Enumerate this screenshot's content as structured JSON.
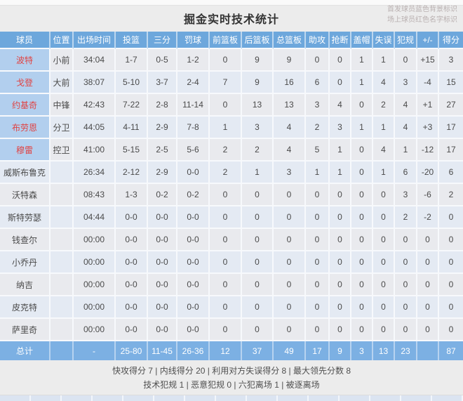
{
  "title": "掘金实时技术统计",
  "legend": {
    "starter_note": "首发球员蓝色背景标识",
    "oncourt_note": "场上球员红色名字标识"
  },
  "table": {
    "columns": [
      "球员",
      "位置",
      "出场时间",
      "投篮",
      "三分",
      "罚球",
      "前篮板",
      "后篮板",
      "总篮板",
      "助攻",
      "抢断",
      "盖帽",
      "失误",
      "犯规",
      "+/-",
      "得分"
    ],
    "rows": [
      {
        "name": "波特",
        "starter": true,
        "oncourt": true,
        "cells": [
          "小前",
          "34:04",
          "1-7",
          "0-5",
          "1-2",
          "0",
          "9",
          "9",
          "0",
          "0",
          "1",
          "1",
          "0",
          "+15",
          "3"
        ]
      },
      {
        "name": "戈登",
        "starter": true,
        "oncourt": true,
        "cells": [
          "大前",
          "38:07",
          "5-10",
          "3-7",
          "2-4",
          "7",
          "9",
          "16",
          "6",
          "0",
          "1",
          "4",
          "3",
          "-4",
          "15"
        ]
      },
      {
        "name": "约基奇",
        "starter": true,
        "oncourt": true,
        "cells": [
          "中锋",
          "42:43",
          "7-22",
          "2-8",
          "11-14",
          "0",
          "13",
          "13",
          "3",
          "4",
          "0",
          "2",
          "4",
          "+1",
          "27"
        ]
      },
      {
        "name": "布劳恩",
        "starter": true,
        "oncourt": true,
        "cells": [
          "分卫",
          "44:05",
          "4-11",
          "2-9",
          "7-8",
          "1",
          "3",
          "4",
          "2",
          "3",
          "1",
          "1",
          "4",
          "+3",
          "17"
        ]
      },
      {
        "name": "穆雷",
        "starter": true,
        "oncourt": true,
        "cells": [
          "控卫",
          "41:00",
          "5-15",
          "2-5",
          "5-6",
          "2",
          "2",
          "4",
          "5",
          "1",
          "0",
          "4",
          "1",
          "-12",
          "17"
        ]
      },
      {
        "name": "威斯布鲁克",
        "starter": false,
        "oncourt": false,
        "cells": [
          "",
          "26:34",
          "2-12",
          "2-9",
          "0-0",
          "2",
          "1",
          "3",
          "1",
          "1",
          "0",
          "1",
          "6",
          "-20",
          "6"
        ]
      },
      {
        "name": "沃特森",
        "starter": false,
        "oncourt": false,
        "cells": [
          "",
          "08:43",
          "1-3",
          "0-2",
          "0-2",
          "0",
          "0",
          "0",
          "0",
          "0",
          "0",
          "0",
          "3",
          "-6",
          "2"
        ]
      },
      {
        "name": "斯特劳瑟",
        "starter": false,
        "oncourt": false,
        "cells": [
          "",
          "04:44",
          "0-0",
          "0-0",
          "0-0",
          "0",
          "0",
          "0",
          "0",
          "0",
          "0",
          "0",
          "2",
          "-2",
          "0"
        ]
      },
      {
        "name": "钱查尔",
        "starter": false,
        "oncourt": false,
        "cells": [
          "",
          "00:00",
          "0-0",
          "0-0",
          "0-0",
          "0",
          "0",
          "0",
          "0",
          "0",
          "0",
          "0",
          "0",
          "0",
          "0"
        ]
      },
      {
        "name": "小乔丹",
        "starter": false,
        "oncourt": false,
        "cells": [
          "",
          "00:00",
          "0-0",
          "0-0",
          "0-0",
          "0",
          "0",
          "0",
          "0",
          "0",
          "0",
          "0",
          "0",
          "0",
          "0"
        ]
      },
      {
        "name": "纳吉",
        "starter": false,
        "oncourt": false,
        "cells": [
          "",
          "00:00",
          "0-0",
          "0-0",
          "0-0",
          "0",
          "0",
          "0",
          "0",
          "0",
          "0",
          "0",
          "0",
          "0",
          "0"
        ]
      },
      {
        "name": "皮克特",
        "starter": false,
        "oncourt": false,
        "cells": [
          "",
          "00:00",
          "0-0",
          "0-0",
          "0-0",
          "0",
          "0",
          "0",
          "0",
          "0",
          "0",
          "0",
          "0",
          "0",
          "0"
        ]
      },
      {
        "name": "萨里奇",
        "starter": false,
        "oncourt": false,
        "cells": [
          "",
          "00:00",
          "0-0",
          "0-0",
          "0-0",
          "0",
          "0",
          "0",
          "0",
          "0",
          "0",
          "0",
          "0",
          "0",
          "0"
        ]
      }
    ],
    "total": {
      "label": "总计",
      "cells": [
        "",
        "-",
        "25-80",
        "11-45",
        "26-36",
        "12",
        "37",
        "49",
        "17",
        "9",
        "3",
        "13",
        "23",
        "",
        "87"
      ]
    }
  },
  "summary": {
    "line1": "快攻得分 7 | 内线得分 20 | 利用对方失误得分 8 | 最大领先分数 8",
    "line2": "技术犯规 1 | 恶意犯规 0 | 六犯离场 1 | 被逐离场"
  },
  "colors": {
    "header_bg": "#6da7dc",
    "starter_bg": "#b2cfee",
    "oncourt_red": "#e04343",
    "total_bg": "#7cb0e3",
    "row_odd": "#e9eaee",
    "row_even": "#e4eaf3",
    "strip_bg": "#dbe4f1"
  }
}
